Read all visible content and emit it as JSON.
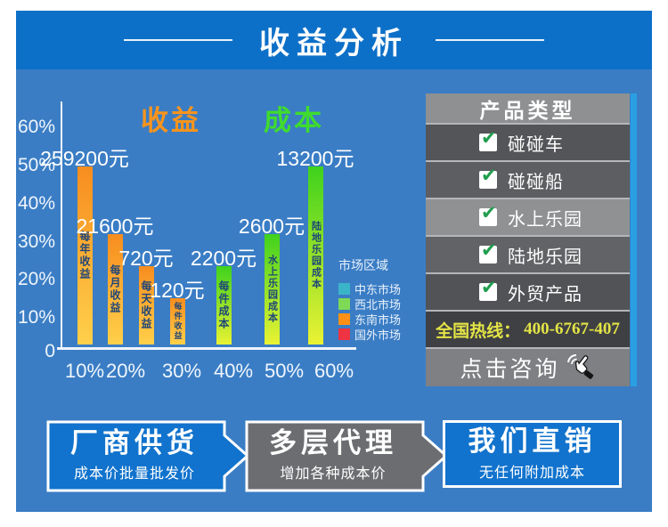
{
  "header": {
    "title": "收益分析"
  },
  "chart_data": {
    "type": "bar",
    "title_revenue": "收益",
    "title_cost": "成本",
    "unit": "元",
    "y_ticks": [
      "60%",
      "50%",
      "40%",
      "30%",
      "20%",
      "10%",
      "0"
    ],
    "x_ticks": [
      "10%",
      "20%",
      "30%",
      "40%",
      "50%",
      "60%"
    ],
    "ylim_pct": [
      0,
      60
    ],
    "grid": false,
    "bars": [
      {
        "name": "每年收益",
        "series": "收益",
        "value": 259200,
        "value_label": "259200元",
        "height_pct": 50
      },
      {
        "name": "每月收益",
        "series": "收益",
        "value": 21600,
        "value_label": "21600元",
        "height_pct": 31
      },
      {
        "name": "每天收益",
        "series": "收益",
        "value": 720,
        "value_label": "720元",
        "height_pct": 22
      },
      {
        "name": "每件收益",
        "series": "收益",
        "value": 120,
        "value_label": "120元",
        "height_pct": 13
      },
      {
        "name": "每件成本",
        "series": "成本",
        "value": 2200,
        "value_label": "2200元",
        "height_pct": 22
      },
      {
        "name": "水上乐园成本",
        "series": "成本",
        "value": 2600,
        "value_label": "2600元",
        "height_pct": 31
      },
      {
        "name": "陆地乐园成本",
        "series": "成本",
        "value": 13200,
        "value_label": "13200元",
        "height_pct": 50
      }
    ],
    "legend": {
      "title": "市场区域",
      "position": "right",
      "items": [
        {
          "label": "中东市场",
          "color": "#3ab4c8"
        },
        {
          "label": "西北市场",
          "color": "#7ed957"
        },
        {
          "label": "东南市场",
          "color": "#ff9015"
        },
        {
          "label": "国外市场",
          "color": "#ee3342"
        }
      ]
    },
    "series_colors": {
      "收益": "#f78d1e",
      "成本": "#3fd21d"
    }
  },
  "product_panel": {
    "title": "产品类型",
    "items": [
      {
        "label": "碰碰车",
        "checked": true
      },
      {
        "label": "碰碰船",
        "checked": true
      },
      {
        "label": "水上乐园",
        "checked": true
      },
      {
        "label": "陆地乐园",
        "checked": true
      },
      {
        "label": "外贸产品",
        "checked": true
      }
    ],
    "hotline_label": "全国热线：",
    "hotline_number": "400-6767-407",
    "consult_label": "点击咨询"
  },
  "flow": [
    {
      "title": "厂商供货",
      "subtitle": "成本价批量批发价",
      "style": "blue",
      "arrow": true
    },
    {
      "title": "多层代理",
      "subtitle": "增加各种成本价",
      "style": "gray",
      "arrow": true
    },
    {
      "title": "我们直销",
      "subtitle": "无任何附加成本",
      "style": "blue",
      "arrow": false
    }
  ],
  "colors": {
    "header_bg": "#0d70c8",
    "body_bg": "#3a7dc5",
    "panel_header_bg": "#8e9092",
    "hotline_text": "#e3e446",
    "flow_blue": "#1173cd",
    "flow_gray": "#6b6d70",
    "bar_revenue_top": "#f78d1e",
    "bar_revenue_bottom": "#ffd04a",
    "bar_cost_top": "#3fd21d",
    "bar_cost_bottom": "#eaf233",
    "check_green": "#1f9e4d"
  }
}
